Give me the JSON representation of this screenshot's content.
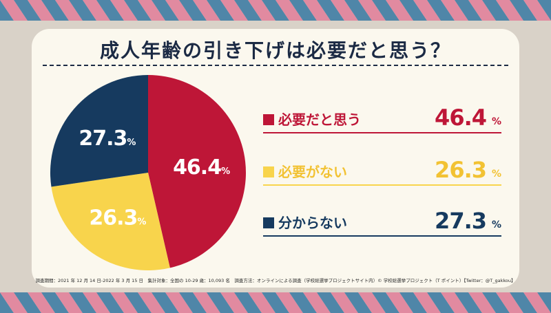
{
  "title": "成人年齢の引き下げは必要だと思う？",
  "colors": {
    "background": "#d9d2c8",
    "card": "#fbf8ee",
    "navy": "#1b3a5c",
    "pink": "#e18aa0",
    "band_blue": "#4f86a8"
  },
  "chart_data": {
    "type": "pie",
    "slices": [
      {
        "label": "必要だと思う",
        "value": 46.4,
        "display": "46.4",
        "color": "#be1637"
      },
      {
        "label": "必要がない",
        "value": 26.3,
        "display": "26.3",
        "color": "#f8d44c"
      },
      {
        "label": "分からない",
        "value": 27.3,
        "display": "27.3",
        "color": "#163a5f"
      }
    ],
    "unit": "%",
    "legend_position": "right"
  },
  "footer": "調査期間：2021 年 12 月 14 日-2022 年 3 月 15 日　集計対象：全国の 10-29 歳：10,093 名　調査方法：オンラインによる調査（学校総選挙プロジェクトサイト内）© 学校総選挙プロジェクト（T ポイント）【Twitter：@T_gakkou】"
}
